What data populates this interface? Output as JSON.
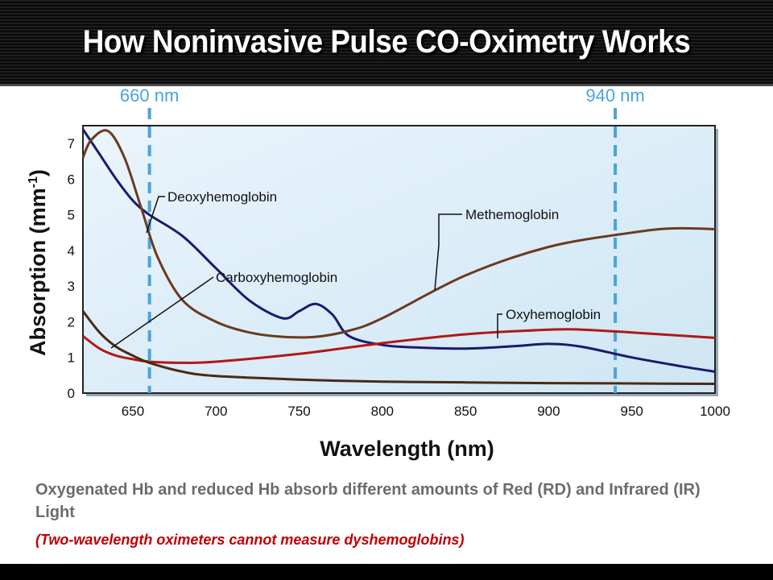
{
  "slide": {
    "title": "How Noninvasive Pulse CO-Oximetry Works",
    "caption": "Oxygenated Hb and reduced Hb absorb different amounts of Red (RD) and Infrared (IR) Light",
    "note": "(Two-wavelength oximeters cannot measure dyshemoglobins)"
  },
  "chart_data": {
    "type": "line",
    "title": "",
    "xlabel": "Wavelength (nm)",
    "ylabel": "Absorption (mm",
    "ylabel_sup": "-1",
    "ylabel_close": ")",
    "xlim": [
      620,
      1000
    ],
    "ylim": [
      0,
      7.5
    ],
    "xticks": [
      650,
      700,
      750,
      800,
      850,
      900,
      950,
      1000
    ],
    "yticks": [
      0,
      1,
      2,
      3,
      4,
      5,
      6,
      7
    ],
    "grid": false,
    "markers": [
      {
        "label": "660 nm",
        "x": 660,
        "color": "#4aa3df"
      },
      {
        "label": "940 nm",
        "x": 940,
        "color": "#4aa3df"
      }
    ],
    "series": [
      {
        "name": "Deoxyhemoglobin",
        "color": "#1a1a6e",
        "x": [
          620,
          630,
          640,
          650,
          660,
          680,
          700,
          720,
          740,
          750,
          760,
          770,
          780,
          800,
          820,
          850,
          880,
          900,
          920,
          950,
          980,
          1000
        ],
        "y": [
          7.4,
          6.7,
          6.0,
          5.4,
          5.0,
          4.4,
          3.5,
          2.6,
          2.1,
          2.3,
          2.5,
          2.2,
          1.6,
          1.35,
          1.28,
          1.25,
          1.32,
          1.38,
          1.3,
          1.0,
          0.75,
          0.6
        ]
      },
      {
        "name": "Oxyhemoglobin",
        "color": "#b01818",
        "x": [
          620,
          630,
          640,
          650,
          660,
          680,
          700,
          750,
          800,
          850,
          900,
          920,
          950,
          1000
        ],
        "y": [
          1.6,
          1.25,
          1.05,
          0.95,
          0.88,
          0.85,
          0.88,
          1.1,
          1.4,
          1.65,
          1.78,
          1.78,
          1.7,
          1.55
        ]
      },
      {
        "name": "Carboxyhemoglobin",
        "color": "#4a2a12",
        "x": [
          620,
          630,
          640,
          650,
          660,
          680,
          700,
          750,
          800,
          850,
          900,
          950,
          1000
        ],
        "y": [
          2.3,
          1.7,
          1.3,
          1.05,
          0.85,
          0.6,
          0.48,
          0.38,
          0.32,
          0.3,
          0.28,
          0.27,
          0.26
        ]
      },
      {
        "name": "Methemoglobin",
        "color": "#6b3a1f",
        "x": [
          620,
          625,
          635,
          645,
          655,
          665,
          680,
          700,
          720,
          740,
          760,
          780,
          800,
          850,
          900,
          950,
          975,
          1000
        ],
        "y": [
          6.6,
          7.1,
          7.35,
          6.6,
          5.2,
          3.8,
          2.6,
          2.0,
          1.7,
          1.58,
          1.58,
          1.75,
          2.1,
          3.3,
          4.1,
          4.5,
          4.62,
          4.6
        ]
      }
    ],
    "annotations": [
      {
        "label": "Deoxyhemoglobin",
        "series": 0
      },
      {
        "label": "Carboxyhemoglobin",
        "series": 2
      },
      {
        "label": "Methemoglobin",
        "series": 3
      },
      {
        "label": "Oxyhemoglobin",
        "series": 1
      }
    ]
  }
}
